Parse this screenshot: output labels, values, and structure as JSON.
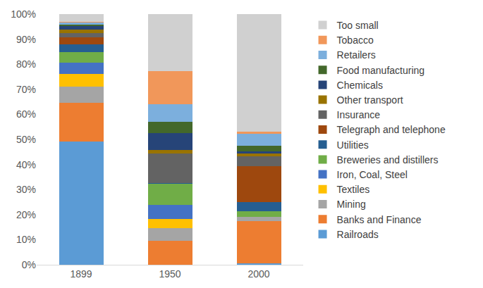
{
  "chart_data": {
    "type": "bar",
    "stacked": true,
    "grid": false,
    "legend": "right",
    "categories": [
      "1899",
      "1950",
      "2000"
    ],
    "ylim": [
      0,
      100
    ],
    "yticks": [
      {
        "value": 0,
        "label": "0%"
      },
      {
        "value": 10,
        "label": "10%"
      },
      {
        "value": 20,
        "label": "20%"
      },
      {
        "value": 30,
        "label": "30%"
      },
      {
        "value": 40,
        "label": "40%"
      },
      {
        "value": 50,
        "label": "50%"
      },
      {
        "value": 60,
        "label": "60%"
      },
      {
        "value": 70,
        "label": "70%"
      },
      {
        "value": 80,
        "label": "80%"
      },
      {
        "value": 90,
        "label": "90%"
      },
      {
        "value": 100,
        "label": "100%"
      }
    ],
    "series": [
      {
        "name": "Railroads",
        "color": "#5b9bd5",
        "values": [
          49.2,
          0,
          0.5
        ]
      },
      {
        "name": "Banks and Finance",
        "color": "#ed7d31",
        "values": [
          15.4,
          9.5,
          16.8
        ]
      },
      {
        "name": "Mining",
        "color": "#a5a5a5",
        "values": [
          6.5,
          5.1,
          1.9
        ]
      },
      {
        "name": "Textiles",
        "color": "#ffc000",
        "values": [
          5.1,
          3.8,
          0
        ]
      },
      {
        "name": "Iron, Coal, Steel",
        "color": "#4472c4",
        "values": [
          4.3,
          5.4,
          0
        ]
      },
      {
        "name": "Breweries and distillers",
        "color": "#70ad47",
        "values": [
          4.4,
          8.6,
          2.2
        ]
      },
      {
        "name": "Utilities",
        "color": "#255e91",
        "values": [
          2.9,
          0.3,
          3.7
        ]
      },
      {
        "name": "Telegraph and telephone",
        "color": "#9e480e",
        "values": [
          3.0,
          0,
          14.1
        ]
      },
      {
        "name": "Insurance",
        "color": "#636363",
        "values": [
          1.6,
          11.6,
          4.0
        ]
      },
      {
        "name": "Other transport",
        "color": "#997300",
        "values": [
          1.4,
          1.6,
          1.1
        ]
      },
      {
        "name": "Chemicals",
        "color": "#264478",
        "values": [
          1.3,
          6.5,
          0.8
        ]
      },
      {
        "name": "Food manufacturing",
        "color": "#43682b",
        "values": [
          0.8,
          4.6,
          2.5
        ]
      },
      {
        "name": "Retailers",
        "color": "#7cafdd",
        "values": [
          0.6,
          7.1,
          4.6
        ]
      },
      {
        "name": "Tobacco",
        "color": "#f1975a",
        "values": [
          0.3,
          13.2,
          1.0
        ]
      },
      {
        "name": "Too small",
        "color": "#d0d0d0",
        "values": [
          3.2,
          22.7,
          46.8
        ]
      }
    ]
  }
}
